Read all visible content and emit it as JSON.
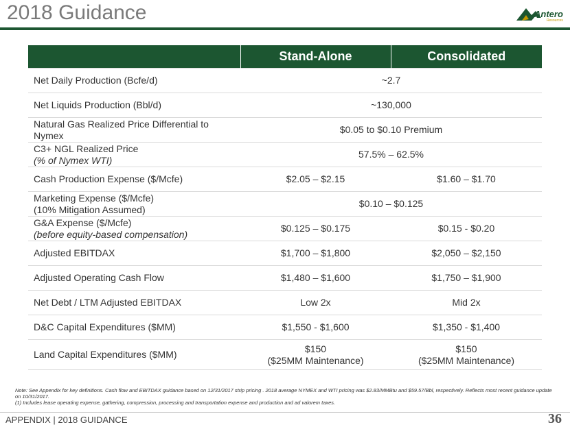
{
  "header": {
    "title": "2018 Guidance",
    "logo_text": "Antero",
    "logo_sub": "Resources"
  },
  "table": {
    "columns": [
      "",
      "Stand-Alone",
      "Consolidated"
    ],
    "rows": [
      {
        "label": "Net Daily Production (Bcfe/d)",
        "merged": "~2.7"
      },
      {
        "label": "Net Liquids Production (Bbl/d)",
        "merged": "~130,000"
      },
      {
        "label": "Natural Gas Realized Price Differential to Nymex",
        "merged": "$0.05 to $0.10 Premium"
      },
      {
        "label": "C3+ NGL Realized Price",
        "sublabel": "(% of Nymex WTI)",
        "merged": "57.5% – 62.5%"
      },
      {
        "label": "Cash Production Expense ($/Mcfe)",
        "standalone": "$2.05 – $2.15",
        "consolidated": "$1.60 – $1.70"
      },
      {
        "label": "Marketing Expense ($/Mcfe)",
        "sublabel": "(10% Mitigation Assumed)",
        "merged": "$0.10 – $0.125"
      },
      {
        "label": "G&A Expense ($/Mcfe)",
        "sublabel": "(before equity-based compensation)",
        "standalone": "$0.125 – $0.175",
        "consolidated": "$0.15 - $0.20"
      },
      {
        "label": "Adjusted EBITDAX",
        "standalone": "$1,700 – $1,800",
        "consolidated": "$2,050 – $2,150"
      },
      {
        "label": "Adjusted Operating Cash Flow",
        "standalone": "$1,480 – $1,600",
        "consolidated": "$1,750 – $1,900"
      },
      {
        "label": "Net Debt / LTM Adjusted EBITDAX",
        "standalone": "Low 2x",
        "consolidated": "Mid 2x"
      },
      {
        "label": "D&C Capital Expenditures ($MM)",
        "standalone": "$1,550 - $1,600",
        "consolidated": "$1,350 - $1,400"
      },
      {
        "label": "Land Capital Expenditures ($MM)",
        "standalone": "$150",
        "standalone_sub": "($25MM Maintenance)",
        "consolidated": "$150",
        "consolidated_sub": "($25MM Maintenance)"
      }
    ]
  },
  "notes": {
    "line1": "Note: See Appendix for key definitions. Cash flow and EBITDAX guidance based on 12/31/2017 strip pricing .  2018 average NYMEX and WTI pricing was $2.83/MMBtu and $59.57/Bbl, respectively.  Reflects most recent guidance update on 10/31/2017.",
    "line2": "(1)    Includes lease operating expense, gathering, compression, processing and transportation expense and production and ad valorem taxes."
  },
  "footer": {
    "section": "APPENDIX | 2018 GUIDANCE",
    "page": "36"
  },
  "colors": {
    "brand_green": "#1c5631",
    "title_gray": "#7a7a7a"
  }
}
